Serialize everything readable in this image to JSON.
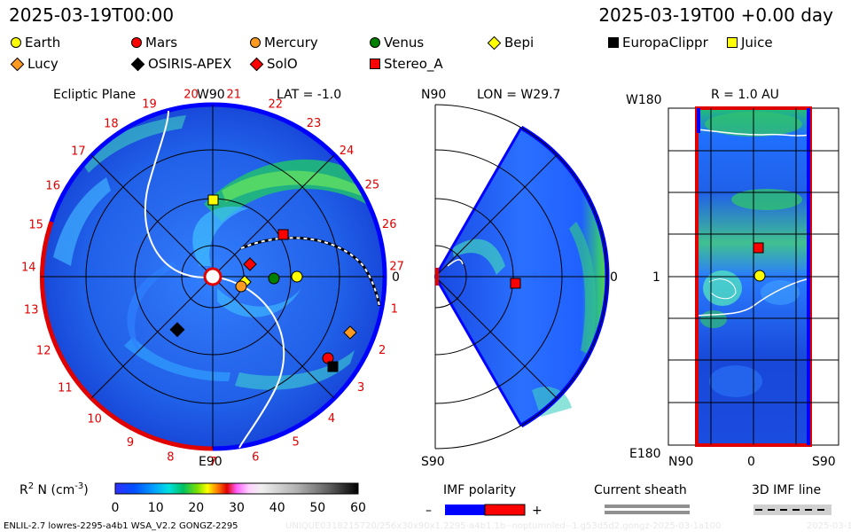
{
  "header": {
    "timestamp": "2025-03-19T00:00",
    "forecast": "2025-03-19T00 +0.00 day"
  },
  "legend": [
    {
      "label": "Earth",
      "shape": "circle",
      "color": "#ffff00"
    },
    {
      "label": "Mars",
      "shape": "circle",
      "color": "#ff0000"
    },
    {
      "label": "Mercury",
      "shape": "circle",
      "color": "#ff9a20"
    },
    {
      "label": "Venus",
      "shape": "circle",
      "color": "#008000"
    },
    {
      "label": "Bepi",
      "shape": "diamond",
      "color": "#ffff00"
    },
    {
      "label": "EuropaClippr",
      "shape": "square",
      "color": "#000000"
    },
    {
      "label": "Juice",
      "shape": "square",
      "color": "#ffff00"
    },
    {
      "label": "Lucy",
      "shape": "diamond",
      "color": "#ff9a20"
    },
    {
      "label": "OSIRIS-APEX",
      "shape": "diamond",
      "color": "#000000"
    },
    {
      "label": "SolO",
      "shape": "diamond",
      "color": "#ff0000"
    },
    {
      "label": "Stereo_A",
      "shape": "square",
      "color": "#ff0000"
    }
  ],
  "panels": {
    "ecliptic": {
      "title": "Ecliptic Plane",
      "top_label": "W90",
      "bottom_label": "E90",
      "lat_label": "LAT = -1.0",
      "right_label": "0",
      "carrington": [
        "27",
        "1",
        "2",
        "3",
        "4",
        "5",
        "6",
        "7",
        "8",
        "9",
        "10",
        "11",
        "12",
        "13",
        "14",
        "15",
        "16",
        "17",
        "18",
        "19",
        "20",
        "21",
        "22",
        "23",
        "24",
        "25",
        "26"
      ]
    },
    "meridional": {
      "top_label": "N90",
      "bottom_label": "S90",
      "lon_label": "LON = W29.7",
      "right_label": "0"
    },
    "radial": {
      "title": "R = 1.0 AU",
      "top_label": "W180",
      "bottom_label": "E180",
      "mid_label": "1",
      "x_labels": [
        "N90",
        "0",
        "S90"
      ]
    }
  },
  "colorbar": {
    "label": "R",
    "label_sup": "2",
    "label_rest": " N (cm",
    "label_unit_sup": "-3",
    "label_close": ")",
    "ticks": [
      "0",
      "10",
      "20",
      "30",
      "40",
      "50",
      "60"
    ]
  },
  "imf": {
    "polarity_label": "IMF polarity",
    "minus": "–",
    "plus": "+",
    "sheath_label": "Current sheath",
    "line_label": "3D IMF line"
  },
  "footer": {
    "model": "ENLIL-2.7 lowres-2295-a4b1 WSA_V2.2 GONGZ-2295",
    "run_id": "UNIQUE0318215720/256x30x90x1.2295-a4b1.1b--noptumnled--1.g53d5d2.gongz-2025-03-1a100",
    "stamp": "2025-03-19"
  },
  "colors": {
    "accent_red": "#e00000",
    "boundary_blue": "#0000ff"
  }
}
